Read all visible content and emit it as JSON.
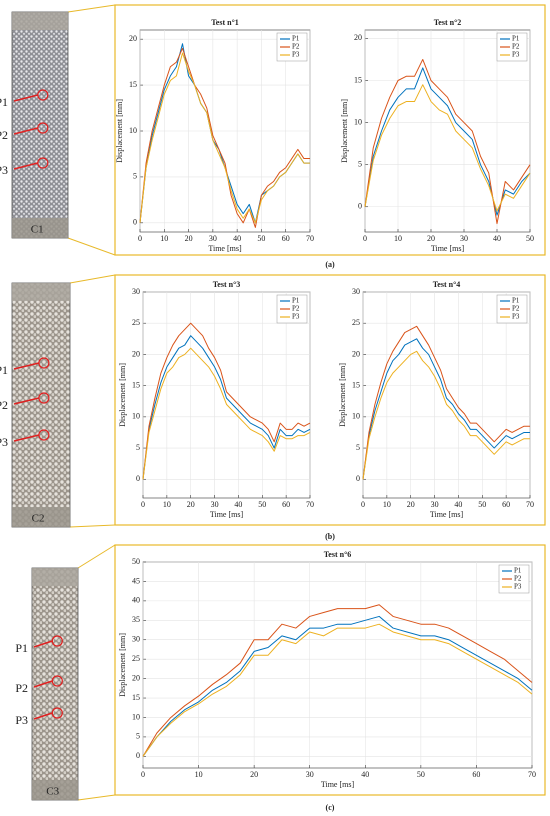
{
  "chart_data": [
    {
      "type": "line",
      "title": "Test n°1",
      "xlabel": "Time [ms]",
      "ylabel": "Displacement [mm]",
      "x": [
        0,
        2.5,
        5,
        7.5,
        10,
        12.5,
        15,
        17.5,
        20,
        22.5,
        25,
        27.5,
        30,
        32.5,
        35,
        37.5,
        40,
        42.5,
        45,
        47.5,
        50,
        52.5,
        55,
        57.5,
        60,
        62.5,
        65,
        67.5,
        70
      ],
      "series": [
        {
          "name": "P1",
          "color": "#0072bd",
          "values": [
            0,
            6,
            9.5,
            12,
            14.5,
            16,
            17,
            19.5,
            16,
            15,
            13,
            12,
            9,
            8,
            6,
            4,
            2,
            1,
            2,
            0,
            3,
            3.5,
            4,
            5,
            5.5,
            6.5,
            7.5,
            6.5,
            6.5
          ]
        },
        {
          "name": "P2",
          "color": "#d95319",
          "values": [
            0,
            6.5,
            10,
            12.5,
            15,
            17,
            17.5,
            19,
            17,
            15,
            14,
            12.5,
            9.5,
            8,
            6.5,
            3,
            1,
            0,
            1.5,
            -0.5,
            3,
            4,
            4.5,
            5.5,
            6,
            7,
            8,
            7,
            7
          ]
        },
        {
          "name": "P3",
          "color": "#edb120",
          "values": [
            0,
            6,
            9,
            11.5,
            14,
            15.5,
            16,
            18.5,
            16.5,
            15,
            13,
            12,
            9,
            7.5,
            6,
            3.5,
            1.5,
            0.5,
            1.5,
            0,
            2.5,
            3.5,
            4,
            5,
            5.5,
            6.5,
            7.5,
            6.5,
            6.5
          ]
        }
      ],
      "xlim": [
        0,
        70
      ],
      "ylim": [
        -1,
        21
      ],
      "xticks": [
        0,
        10,
        20,
        30,
        40,
        50,
        60,
        70
      ],
      "yticks": [
        0,
        5,
        10,
        15,
        20
      ],
      "grid": true,
      "legend": "upper right"
    },
    {
      "type": "line",
      "title": "Test n°2",
      "xlabel": "Time [ms]",
      "ylabel": "Displacement [mm]",
      "x": [
        0,
        2.5,
        5,
        7.5,
        10,
        12.5,
        15,
        17.5,
        20,
        22.5,
        25,
        27.5,
        30,
        32.5,
        35,
        37.5,
        40,
        42.5,
        45,
        47.5,
        50
      ],
      "series": [
        {
          "name": "P1",
          "color": "#0072bd",
          "values": [
            0,
            6,
            9,
            11.5,
            13,
            14,
            14,
            16.5,
            14,
            13,
            12,
            10,
            9,
            8,
            5,
            3,
            -1,
            2,
            1.5,
            3,
            4
          ]
        },
        {
          "name": "P2",
          "color": "#d95319",
          "values": [
            0,
            7,
            10.5,
            13,
            15,
            15.5,
            15.5,
            17.5,
            15,
            14,
            13,
            11,
            10,
            9,
            6,
            4,
            -2,
            3,
            2,
            3.5,
            5
          ]
        },
        {
          "name": "P3",
          "color": "#edb120",
          "values": [
            0,
            5.5,
            8.5,
            10.5,
            12,
            12.5,
            12.5,
            14.5,
            12.5,
            11.5,
            11,
            9,
            8,
            7,
            4.5,
            2.5,
            -0.5,
            1.5,
            1,
            2.5,
            4
          ]
        }
      ],
      "xlim": [
        0,
        50
      ],
      "ylim": [
        -3,
        21
      ],
      "xticks": [
        0,
        10,
        20,
        30,
        40,
        50
      ],
      "yticks": [
        0,
        5,
        10,
        15,
        20
      ],
      "grid": true,
      "legend": "upper right"
    },
    {
      "type": "line",
      "title": "Test n°3",
      "xlabel": "Time [ms]",
      "ylabel": "Displacement [mm]",
      "x": [
        0,
        2.5,
        5,
        7.5,
        10,
        12.5,
        15,
        17.5,
        20,
        22.5,
        25,
        27.5,
        30,
        32.5,
        35,
        37.5,
        40,
        42.5,
        45,
        47.5,
        50,
        52.5,
        55,
        57.5,
        60,
        62.5,
        65,
        67.5,
        70
      ],
      "series": [
        {
          "name": "P1",
          "color": "#0072bd",
          "values": [
            0,
            8,
            12,
            15.5,
            18,
            19.5,
            21,
            21.5,
            23,
            22,
            21,
            19.5,
            18,
            16,
            13,
            12,
            11,
            10,
            9,
            8.5,
            8,
            7,
            5,
            8,
            7,
            7,
            8,
            7.5,
            8
          ]
        },
        {
          "name": "P2",
          "color": "#d95319",
          "values": [
            0,
            8.5,
            13,
            17,
            19.5,
            21.5,
            23,
            24,
            25,
            24,
            23,
            21,
            19.5,
            17.5,
            14,
            13,
            12,
            11,
            10,
            9.5,
            9,
            8,
            6,
            9,
            8,
            8,
            9,
            8.5,
            9
          ]
        },
        {
          "name": "P3",
          "color": "#edb120",
          "values": [
            0,
            7.5,
            11,
            14.5,
            17,
            18,
            19.5,
            20,
            21,
            20,
            19,
            18,
            16.5,
            14.5,
            12,
            11,
            10,
            9,
            8,
            7.5,
            7,
            6,
            4.5,
            7,
            6.5,
            6.5,
            7,
            7,
            7.5
          ]
        }
      ],
      "xlim": [
        0,
        70
      ],
      "ylim": [
        -3,
        30
      ],
      "xticks": [
        0,
        10,
        20,
        30,
        40,
        50,
        60,
        70
      ],
      "yticks": [
        0,
        5,
        10,
        15,
        20,
        25,
        30
      ],
      "grid": true,
      "legend": "upper right"
    },
    {
      "type": "line",
      "title": "Test n°4",
      "xlabel": "Time [ms]",
      "ylabel": "Displacement [mm]",
      "x": [
        0,
        2.5,
        5,
        7.5,
        10,
        12.5,
        15,
        17.5,
        20,
        22.5,
        25,
        27.5,
        30,
        32.5,
        35,
        37.5,
        40,
        42.5,
        45,
        47.5,
        50,
        52.5,
        55,
        57.5,
        60,
        62.5,
        65,
        67.5,
        70
      ],
      "series": [
        {
          "name": "P1",
          "color": "#0072bd",
          "values": [
            0,
            7,
            11,
            14,
            17,
            19,
            20,
            21.5,
            22,
            22.5,
            21,
            20,
            18,
            16,
            13,
            12,
            10.5,
            9.5,
            8,
            8,
            7,
            6,
            5,
            6,
            7,
            6.5,
            7,
            7.5,
            7.5
          ]
        },
        {
          "name": "P2",
          "color": "#d95319",
          "values": [
            0,
            7.5,
            12,
            15.5,
            18.5,
            20.5,
            22,
            23.5,
            24,
            24.5,
            23,
            21.5,
            19.5,
            17.5,
            14.5,
            13,
            11.5,
            10.5,
            9,
            9,
            8,
            7,
            6,
            7,
            8,
            7.5,
            8,
            8.5,
            8.5
          ]
        },
        {
          "name": "P3",
          "color": "#edb120",
          "values": [
            0,
            6.5,
            10,
            13,
            15.5,
            17,
            18,
            19,
            20,
            20.5,
            19,
            18,
            16.5,
            14.5,
            12,
            11,
            9.5,
            8.5,
            7,
            7,
            6,
            5,
            4,
            5,
            6,
            5.5,
            6,
            6.5,
            6.5
          ]
        }
      ],
      "xlim": [
        0,
        70
      ],
      "ylim": [
        -3,
        30
      ],
      "xticks": [
        0,
        10,
        20,
        30,
        40,
        50,
        60,
        70
      ],
      "yticks": [
        0,
        5,
        10,
        15,
        20,
        25,
        30
      ],
      "grid": true,
      "legend": "upper right"
    },
    {
      "type": "line",
      "title": "Test n°6",
      "xlabel": "Time [ms]",
      "ylabel": "Displacement [mm]",
      "x": [
        0,
        2.5,
        5,
        7.5,
        10,
        12.5,
        15,
        17.5,
        20,
        22.5,
        25,
        27.5,
        30,
        32.5,
        35,
        37.5,
        40,
        42.5,
        45,
        47.5,
        50,
        52.5,
        55,
        57.5,
        60,
        62.5,
        65,
        67.5,
        70
      ],
      "series": [
        {
          "name": "P1",
          "color": "#0072bd",
          "values": [
            0,
            5,
            9,
            12,
            14,
            17,
            19,
            22,
            27,
            28,
            31,
            30,
            33,
            33,
            34,
            34,
            35,
            36,
            33,
            32,
            31,
            31,
            30,
            28,
            26,
            24,
            22,
            20,
            17
          ]
        },
        {
          "name": "P2",
          "color": "#d95319",
          "values": [
            0,
            6,
            10,
            13,
            15.5,
            18.5,
            21,
            24,
            30,
            30,
            34,
            33,
            36,
            37,
            38,
            38,
            38,
            39,
            36,
            35,
            34,
            34,
            33,
            31,
            29,
            27,
            25,
            22,
            19
          ]
        },
        {
          "name": "P3",
          "color": "#edb120",
          "values": [
            0,
            5,
            8.5,
            11.5,
            13.5,
            16,
            18,
            21,
            26,
            26,
            30,
            29,
            32,
            31,
            33,
            33,
            33,
            34,
            32,
            31,
            30,
            30,
            29,
            27,
            25,
            23,
            21,
            19,
            16
          ]
        }
      ],
      "xlim": [
        0,
        70
      ],
      "ylim": [
        -3,
        50
      ],
      "xticks": [
        0,
        10,
        20,
        30,
        40,
        50,
        60,
        70
      ],
      "yticks": [
        0,
        5,
        10,
        15,
        20,
        25,
        30,
        35,
        40,
        45,
        50
      ],
      "grid": true,
      "legend": "upper right"
    }
  ],
  "specimens": [
    {
      "label": "C1",
      "points": [
        "P1",
        "P2",
        "P3"
      ],
      "caption": "(a)"
    },
    {
      "label": "C2",
      "points": [
        "P1",
        "P2",
        "P3"
      ],
      "caption": "(b)"
    },
    {
      "label": "C3",
      "points": [
        "P1",
        "P2",
        "P3"
      ],
      "caption": "(c)"
    }
  ]
}
